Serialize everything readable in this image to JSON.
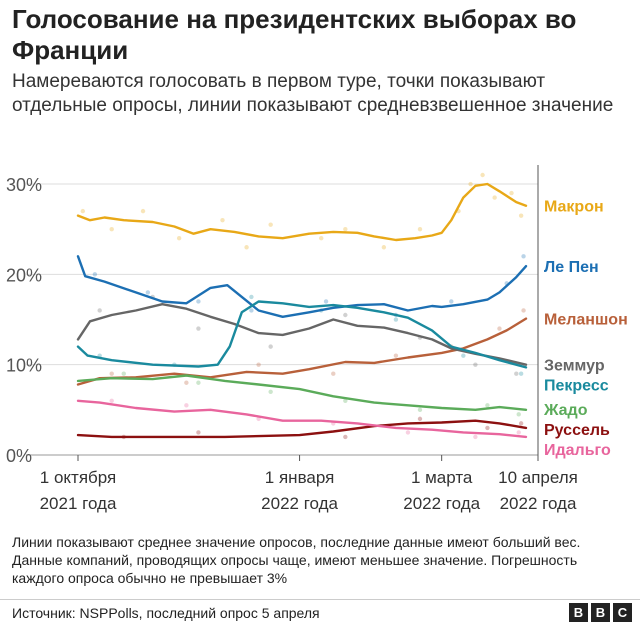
{
  "header": {
    "title": "Голосование на президентских выборах во Франции",
    "subtitle": "Намереваются голосовать в первом туре, точки показывают отдельные опросы, линии показывают средневзвешенное значение"
  },
  "footer": {
    "note": "Линии показывают среднее значение опросов, последние данные имеют больший вес. Данные компаний, проводящих опросы чаще, имеют меньшее значение. Погрешность каждого опроса обычно не превышает 3%",
    "source": "Источник: NSPPolls, последний опрос 5 апреля",
    "logo": [
      "B",
      "B",
      "C"
    ]
  },
  "chart_data": {
    "type": "line",
    "x_unit": "date",
    "x_range": [
      "2021-10-01",
      "2022-04-10"
    ],
    "ylim": [
      0,
      31
    ],
    "yticks": [
      0,
      10,
      20,
      30
    ],
    "ytick_labels": [
      "0%",
      "10%",
      "20%",
      "30%"
    ],
    "grid": "horizontal",
    "xticks": [
      {
        "date": "2021-10-01",
        "label": [
          "1 октября",
          "2021 года"
        ]
      },
      {
        "date": "2022-01-01",
        "label": [
          "1 января",
          "2022 года"
        ]
      },
      {
        "date": "2022-03-01",
        "label": [
          "1 марта",
          "2022 года"
        ]
      },
      {
        "date": "2022-04-10",
        "label": [
          "10 апреля",
          "2022 года"
        ]
      }
    ],
    "series": [
      {
        "name": "Макрон",
        "color": "#e8a817",
        "points": [
          [
            "2021-10-01",
            26.5
          ],
          [
            "2021-10-06",
            26.0
          ],
          [
            "2021-10-12",
            26.3
          ],
          [
            "2021-10-20",
            26.0
          ],
          [
            "2021-11-01",
            25.8
          ],
          [
            "2021-11-10",
            25.3
          ],
          [
            "2021-11-18",
            24.5
          ],
          [
            "2021-11-25",
            25.0
          ],
          [
            "2021-12-05",
            24.7
          ],
          [
            "2021-12-15",
            24.2
          ],
          [
            "2021-12-25",
            24.0
          ],
          [
            "2022-01-05",
            24.5
          ],
          [
            "2022-01-15",
            24.7
          ],
          [
            "2022-01-25",
            24.6
          ],
          [
            "2022-02-01",
            24.2
          ],
          [
            "2022-02-10",
            23.8
          ],
          [
            "2022-02-18",
            24.0
          ],
          [
            "2022-02-25",
            24.3
          ],
          [
            "2022-03-01",
            24.6
          ],
          [
            "2022-03-05",
            26.0
          ],
          [
            "2022-03-10",
            28.5
          ],
          [
            "2022-03-15",
            29.8
          ],
          [
            "2022-03-20",
            30.0
          ],
          [
            "2022-03-25",
            29.2
          ],
          [
            "2022-04-01",
            28.0
          ],
          [
            "2022-04-05",
            27.6
          ]
        ],
        "polls": [
          [
            "2021-10-03",
            27.0
          ],
          [
            "2021-10-15",
            25.0
          ],
          [
            "2021-10-28",
            27.0
          ],
          [
            "2021-11-12",
            24.0
          ],
          [
            "2021-11-30",
            26.0
          ],
          [
            "2021-12-10",
            23.0
          ],
          [
            "2021-12-20",
            25.5
          ],
          [
            "2022-01-10",
            24.0
          ],
          [
            "2022-01-20",
            25.0
          ],
          [
            "2022-02-05",
            23.0
          ],
          [
            "2022-02-20",
            25.0
          ],
          [
            "2022-03-08",
            27.0
          ],
          [
            "2022-03-13",
            30.0
          ],
          [
            "2022-03-18",
            31.0
          ],
          [
            "2022-03-23",
            28.5
          ],
          [
            "2022-03-30",
            29.0
          ],
          [
            "2022-04-03",
            26.5
          ]
        ]
      },
      {
        "name": "Ле Пен",
        "color": "#1c6fb3",
        "points": [
          [
            "2021-10-01",
            22.0
          ],
          [
            "2021-10-04",
            19.8
          ],
          [
            "2021-10-12",
            19.2
          ],
          [
            "2021-10-25",
            18.0
          ],
          [
            "2021-11-05",
            17.0
          ],
          [
            "2021-11-15",
            16.8
          ],
          [
            "2021-11-25",
            18.5
          ],
          [
            "2021-12-02",
            18.8
          ],
          [
            "2021-12-08",
            17.5
          ],
          [
            "2021-12-15",
            16.0
          ],
          [
            "2021-12-25",
            15.3
          ],
          [
            "2022-01-05",
            15.8
          ],
          [
            "2022-01-15",
            16.3
          ],
          [
            "2022-01-25",
            16.6
          ],
          [
            "2022-02-05",
            16.7
          ],
          [
            "2022-02-15",
            16.0
          ],
          [
            "2022-02-25",
            16.5
          ],
          [
            "2022-03-01",
            16.4
          ],
          [
            "2022-03-10",
            16.7
          ],
          [
            "2022-03-20",
            17.2
          ],
          [
            "2022-03-25",
            18.0
          ],
          [
            "2022-04-01",
            19.7
          ],
          [
            "2022-04-05",
            20.9
          ]
        ],
        "polls": [
          [
            "2021-10-08",
            20.0
          ],
          [
            "2021-10-30",
            18.0
          ],
          [
            "2021-11-20",
            17.0
          ],
          [
            "2021-12-12",
            16.0
          ],
          [
            "2022-01-12",
            17.0
          ],
          [
            "2022-02-10",
            15.5
          ],
          [
            "2022-03-05",
            17.0
          ],
          [
            "2022-03-28",
            19.0
          ],
          [
            "2022-04-04",
            22.0
          ]
        ]
      },
      {
        "name": "Меланшон",
        "color": "#b8603a",
        "points": [
          [
            "2021-10-01",
            7.8
          ],
          [
            "2021-10-10",
            8.5
          ],
          [
            "2021-10-25",
            8.6
          ],
          [
            "2021-11-10",
            9.0
          ],
          [
            "2021-11-25",
            8.6
          ],
          [
            "2021-12-10",
            9.2
          ],
          [
            "2021-12-25",
            9.0
          ],
          [
            "2022-01-05",
            9.5
          ],
          [
            "2022-01-20",
            10.3
          ],
          [
            "2022-02-01",
            10.2
          ],
          [
            "2022-02-15",
            10.8
          ],
          [
            "2022-03-01",
            11.3
          ],
          [
            "2022-03-10",
            11.8
          ],
          [
            "2022-03-20",
            12.8
          ],
          [
            "2022-03-28",
            13.8
          ],
          [
            "2022-04-05",
            15.1
          ]
        ],
        "polls": [
          [
            "2021-10-15",
            9.0
          ],
          [
            "2021-11-15",
            8.0
          ],
          [
            "2021-12-15",
            10.0
          ],
          [
            "2022-01-15",
            9.0
          ],
          [
            "2022-02-10",
            11.0
          ],
          [
            "2022-03-05",
            12.0
          ],
          [
            "2022-03-25",
            14.0
          ],
          [
            "2022-04-04",
            16.0
          ]
        ]
      },
      {
        "name": "Земмур",
        "color": "#666666",
        "points": [
          [
            "2021-10-01",
            12.8
          ],
          [
            "2021-10-06",
            14.8
          ],
          [
            "2021-10-15",
            15.5
          ],
          [
            "2021-10-25",
            16.0
          ],
          [
            "2021-11-05",
            16.7
          ],
          [
            "2021-11-15",
            16.2
          ],
          [
            "2021-11-25",
            15.3
          ],
          [
            "2021-12-05",
            14.5
          ],
          [
            "2021-12-15",
            13.5
          ],
          [
            "2021-12-25",
            13.3
          ],
          [
            "2022-01-05",
            14.0
          ],
          [
            "2022-01-15",
            15.0
          ],
          [
            "2022-01-25",
            14.3
          ],
          [
            "2022-02-05",
            14.1
          ],
          [
            "2022-02-15",
            13.5
          ],
          [
            "2022-02-25",
            12.8
          ],
          [
            "2022-03-05",
            11.8
          ],
          [
            "2022-03-15",
            11.2
          ],
          [
            "2022-03-25",
            10.7
          ],
          [
            "2022-04-05",
            10.0
          ]
        ],
        "polls": [
          [
            "2021-10-10",
            16.0
          ],
          [
            "2021-11-01",
            17.5
          ],
          [
            "2021-11-20",
            14.0
          ],
          [
            "2021-12-20",
            12.0
          ],
          [
            "2022-01-20",
            15.5
          ],
          [
            "2022-02-20",
            13.0
          ],
          [
            "2022-03-15",
            10.0
          ],
          [
            "2022-04-01",
            9.0
          ]
        ]
      },
      {
        "name": "Пекресс",
        "color": "#1a8a9e",
        "points": [
          [
            "2021-10-01",
            12.0
          ],
          [
            "2021-10-05",
            11.0
          ],
          [
            "2021-10-15",
            10.5
          ],
          [
            "2021-11-01",
            10.0
          ],
          [
            "2021-11-20",
            9.8
          ],
          [
            "2021-11-28",
            10.0
          ],
          [
            "2021-12-03",
            12.0
          ],
          [
            "2021-12-08",
            15.8
          ],
          [
            "2021-12-15",
            17.0
          ],
          [
            "2021-12-25",
            16.8
          ],
          [
            "2022-01-05",
            16.4
          ],
          [
            "2022-01-15",
            16.6
          ],
          [
            "2022-01-25",
            16.3
          ],
          [
            "2022-02-05",
            15.8
          ],
          [
            "2022-02-15",
            15.2
          ],
          [
            "2022-02-25",
            13.8
          ],
          [
            "2022-03-05",
            12.0
          ],
          [
            "2022-03-15",
            11.3
          ],
          [
            "2022-03-25",
            10.5
          ],
          [
            "2022-04-05",
            9.7
          ]
        ],
        "polls": [
          [
            "2021-10-10",
            11.0
          ],
          [
            "2021-11-10",
            10.0
          ],
          [
            "2021-12-12",
            17.5
          ],
          [
            "2022-01-10",
            16.0
          ],
          [
            "2022-02-10",
            15.0
          ],
          [
            "2022-03-10",
            11.0
          ],
          [
            "2022-04-03",
            9.0
          ]
        ]
      },
      {
        "name": "Жадо",
        "color": "#5bab5a",
        "points": [
          [
            "2021-10-01",
            8.2
          ],
          [
            "2021-10-15",
            8.5
          ],
          [
            "2021-11-01",
            8.4
          ],
          [
            "2021-11-15",
            8.8
          ],
          [
            "2021-12-01",
            8.2
          ],
          [
            "2021-12-15",
            7.8
          ],
          [
            "2022-01-01",
            7.3
          ],
          [
            "2022-01-15",
            6.5
          ],
          [
            "2022-02-01",
            5.8
          ],
          [
            "2022-02-15",
            5.5
          ],
          [
            "2022-03-01",
            5.2
          ],
          [
            "2022-03-15",
            5.0
          ],
          [
            "2022-03-25",
            5.3
          ],
          [
            "2022-04-05",
            5.0
          ]
        ],
        "polls": [
          [
            "2021-10-20",
            9.0
          ],
          [
            "2021-11-20",
            8.0
          ],
          [
            "2021-12-20",
            7.0
          ],
          [
            "2022-01-20",
            6.0
          ],
          [
            "2022-02-20",
            5.0
          ],
          [
            "2022-03-20",
            5.5
          ],
          [
            "2022-04-02",
            4.5
          ]
        ]
      },
      {
        "name": "Руссель",
        "color": "#8c1010",
        "points": [
          [
            "2021-10-01",
            2.2
          ],
          [
            "2021-10-15",
            2.0
          ],
          [
            "2021-11-01",
            2.0
          ],
          [
            "2021-12-01",
            2.0
          ],
          [
            "2022-01-01",
            2.2
          ],
          [
            "2022-01-15",
            2.6
          ],
          [
            "2022-02-01",
            3.2
          ],
          [
            "2022-02-15",
            3.5
          ],
          [
            "2022-03-01",
            3.6
          ],
          [
            "2022-03-15",
            3.8
          ],
          [
            "2022-03-25",
            3.5
          ],
          [
            "2022-04-05",
            3.0
          ]
        ],
        "polls": [
          [
            "2021-10-20",
            2.0
          ],
          [
            "2021-11-20",
            2.5
          ],
          [
            "2022-01-20",
            2.0
          ],
          [
            "2022-02-20",
            4.0
          ],
          [
            "2022-03-20",
            3.0
          ],
          [
            "2022-04-03",
            3.5
          ]
        ]
      },
      {
        "name": "Идальго",
        "color": "#e8659d",
        "points": [
          [
            "2021-10-01",
            6.0
          ],
          [
            "2021-10-10",
            5.8
          ],
          [
            "2021-10-25",
            5.2
          ],
          [
            "2021-11-10",
            4.8
          ],
          [
            "2021-11-25",
            5.0
          ],
          [
            "2021-12-10",
            4.5
          ],
          [
            "2021-12-25",
            3.8
          ],
          [
            "2022-01-10",
            3.8
          ],
          [
            "2022-01-25",
            3.5
          ],
          [
            "2022-02-10",
            3.0
          ],
          [
            "2022-02-25",
            2.8
          ],
          [
            "2022-03-10",
            2.5
          ],
          [
            "2022-03-25",
            2.3
          ],
          [
            "2022-04-05",
            2.0
          ]
        ],
        "polls": [
          [
            "2021-10-15",
            6.0
          ],
          [
            "2021-11-15",
            5.5
          ],
          [
            "2021-12-15",
            4.0
          ],
          [
            "2022-01-15",
            3.5
          ],
          [
            "2022-02-15",
            2.5
          ],
          [
            "2022-03-15",
            2.0
          ],
          [
            "2022-04-02",
            2.5
          ]
        ]
      }
    ]
  }
}
